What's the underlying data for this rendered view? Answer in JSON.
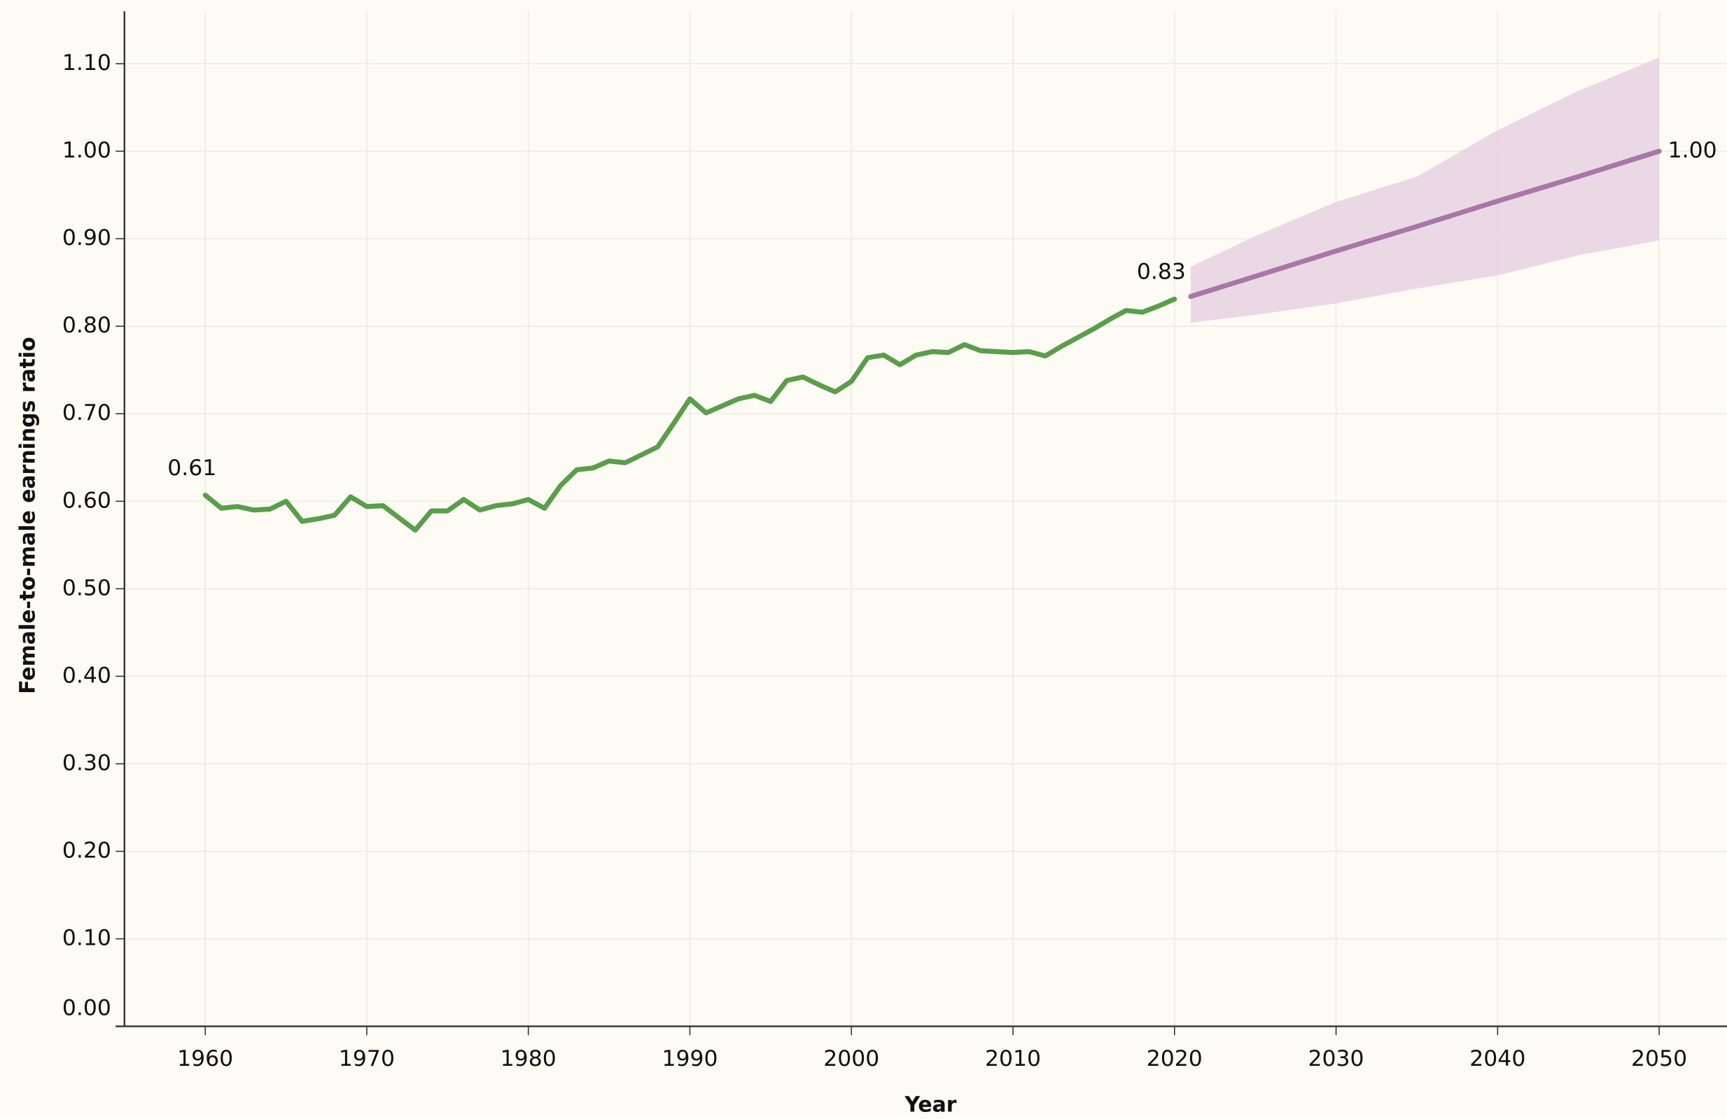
{
  "chart_data": {
    "type": "line",
    "x_label": "Year",
    "y_label": "Female-to-male earnings ratio",
    "xlim": [
      1955,
      2054.2
    ],
    "ylim": [
      0,
      1.16
    ],
    "xticks": [
      1960,
      1970,
      1980,
      1990,
      2000,
      2010,
      2020,
      2030,
      2040,
      2050
    ],
    "yticks": [
      {
        "value": 0,
        "label": "0.00"
      },
      {
        "value": 0.1,
        "label": "0.10"
      },
      {
        "value": 0.2,
        "label": "0.20"
      },
      {
        "value": 0.3,
        "label": "0.30"
      },
      {
        "value": 0.4,
        "label": "0.40"
      },
      {
        "value": 0.5,
        "label": "0.50"
      },
      {
        "value": 0.6,
        "label": "0.60"
      },
      {
        "value": 0.7,
        "label": "0.70"
      },
      {
        "value": 0.8,
        "label": "0.80"
      },
      {
        "value": 0.9,
        "label": "0.90"
      },
      {
        "value": 1.0,
        "label": "1.00"
      },
      {
        "value": 1.1,
        "label": "1.10"
      }
    ],
    "grid": true,
    "series": [
      {
        "color": "#5a9e4b",
        "x": [
          1960,
          1961,
          1962,
          1963,
          1964,
          1965,
          1966,
          1967,
          1968,
          1969,
          1970,
          1971,
          1972,
          1973,
          1974,
          1975,
          1976,
          1977,
          1978,
          1979,
          1980,
          1981,
          1982,
          1983,
          1984,
          1985,
          1986,
          1987,
          1988,
          1989,
          1990,
          1991,
          1992,
          1993,
          1994,
          1995,
          1996,
          1997,
          1998,
          1999,
          2000,
          2001,
          2002,
          2003,
          2004,
          2005,
          2006,
          2007,
          2008,
          2009,
          2010,
          2011,
          2012,
          2013,
          2014,
          2015,
          2016,
          2017,
          2018,
          2019,
          2020
        ],
        "values": [
          0.607,
          0.592,
          0.594,
          0.59,
          0.591,
          0.6,
          0.577,
          0.58,
          0.584,
          0.605,
          0.594,
          0.595,
          0.581,
          0.567,
          0.589,
          0.589,
          0.602,
          0.59,
          0.595,
          0.597,
          0.602,
          0.592,
          0.618,
          0.636,
          0.638,
          0.646,
          0.644,
          0.653,
          0.662,
          0.689,
          0.717,
          0.701,
          0.709,
          0.717,
          0.721,
          0.714,
          0.738,
          0.742,
          0.733,
          0.725,
          0.737,
          0.764,
          0.767,
          0.756,
          0.767,
          0.771,
          0.77,
          0.779,
          0.772,
          0.771,
          0.77,
          0.771,
          0.766,
          0.777,
          0.787,
          0.797,
          0.808,
          0.818,
          0.816,
          0.823,
          0.831
        ],
        "value_labels": [
          "0.61",
          null,
          null,
          null,
          null,
          null,
          null,
          null,
          null,
          null,
          null,
          null,
          null,
          null,
          null,
          null,
          null,
          null,
          null,
          null,
          null,
          null,
          null,
          null,
          null,
          null,
          null,
          null,
          null,
          null,
          null,
          null,
          null,
          null,
          null,
          null,
          null,
          null,
          null,
          null,
          null,
          null,
          null,
          null,
          null,
          null,
          null,
          null,
          null,
          null,
          null,
          null,
          null,
          null,
          null,
          null,
          null,
          null,
          null,
          null,
          "0.83"
        ]
      },
      {
        "color": "#a877a6",
        "band_color": "#e6d2e2",
        "x": [
          2021,
          2025,
          2030,
          2035,
          2040,
          2045,
          2050
        ],
        "values": [
          0.834,
          0.857,
          0.886,
          0.914,
          0.943,
          0.971,
          1.0
        ],
        "upper": [
          0.868,
          0.903,
          0.942,
          0.971,
          1.024,
          1.069,
          1.107
        ],
        "lower": [
          0.804,
          0.813,
          0.826,
          0.843,
          0.858,
          0.881,
          0.898
        ],
        "value_labels": [
          null,
          null,
          null,
          null,
          null,
          null,
          "1.00"
        ]
      }
    ]
  }
}
